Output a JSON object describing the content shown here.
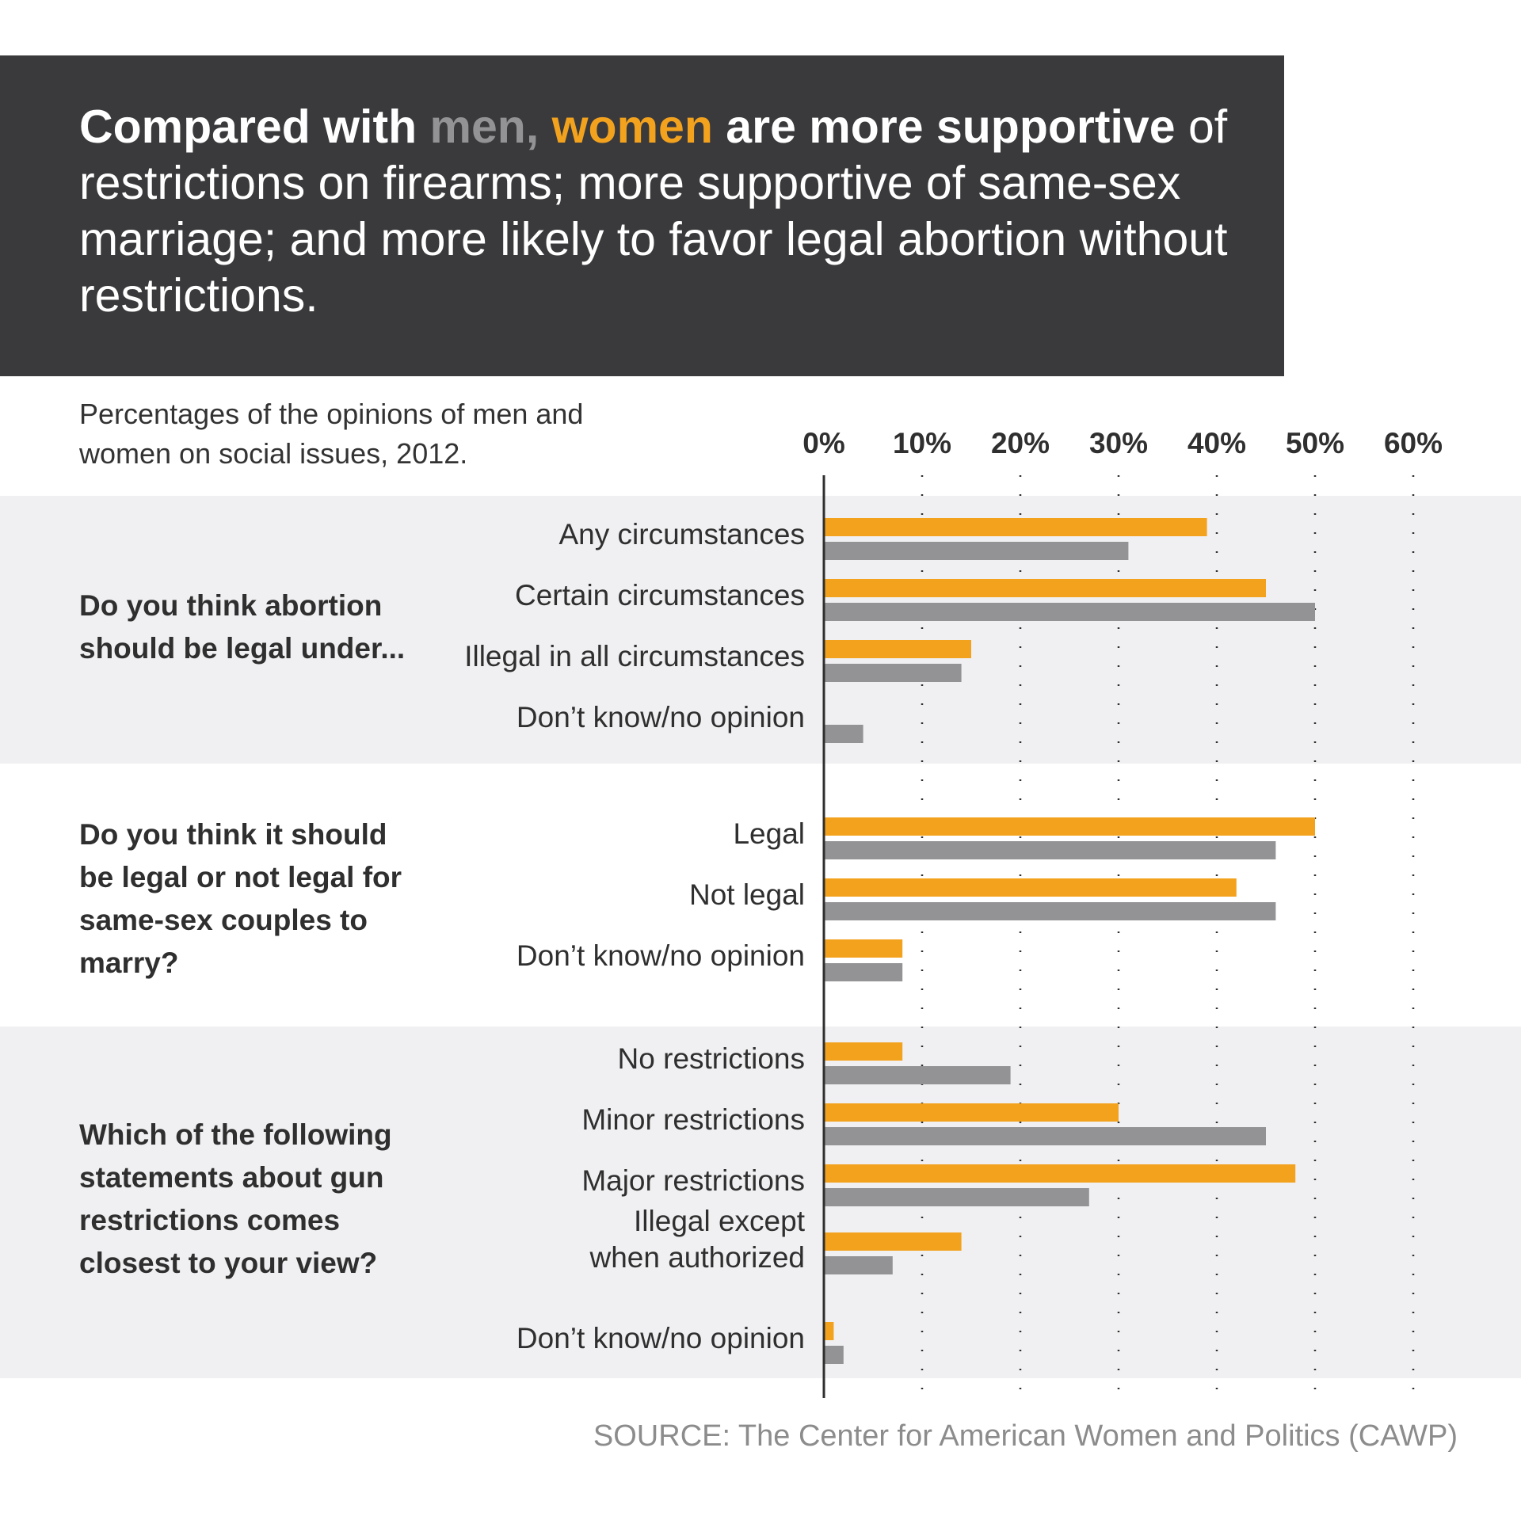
{
  "header": {
    "lead": "Compared with ",
    "men_word": "men,",
    "women_word": "women",
    "bold_rest": " are more supportive",
    "rest": " of restrictions on firearms; more supportive of same-sex marriage; and more likely to favor legal abortion without restrictions."
  },
  "subtitle": "Percentages of the opinions of men and women on social issues, 2012.",
  "source": "SOURCE: The Center for American Women and Politics (CAWP)",
  "colors": {
    "women": "#f3a21e",
    "men": "#939395",
    "band": "#f0f0f2",
    "header_bg": "#3a3a3c"
  },
  "chart_data": {
    "type": "bar",
    "orientation": "horizontal",
    "xlim": [
      0,
      60
    ],
    "ticks": [
      "0%",
      "10%",
      "20%",
      "30%",
      "40%",
      "50%",
      "60%"
    ],
    "grid": true,
    "series": [
      {
        "key": "women",
        "label_word": "women"
      },
      {
        "key": "men",
        "label_word": "men"
      }
    ],
    "groups": [
      {
        "question": "Do you think abortion should be legal under...",
        "shaded": true,
        "items": [
          {
            "label": "Any circumstances",
            "women": 39,
            "men": 31
          },
          {
            "label": "Certain circumstances",
            "women": 45,
            "men": 50
          },
          {
            "label": "Illegal in all circumstances",
            "women": 15,
            "men": 14
          },
          {
            "label": "Don’t know/no opinion",
            "women": 0,
            "men": 4
          }
        ]
      },
      {
        "question": "Do you think it should be legal or not legal for same-sex couples to marry?",
        "shaded": false,
        "items": [
          {
            "label": "Legal",
            "women": 50,
            "men": 46
          },
          {
            "label": "Not legal",
            "women": 42,
            "men": 46
          },
          {
            "label": "Don’t know/no opinion",
            "women": 8,
            "men": 8
          }
        ]
      },
      {
        "question": "Which of the following statements about gun restrictions comes closest to your view?",
        "shaded": true,
        "items": [
          {
            "label": "No restrictions",
            "women": 8,
            "men": 19
          },
          {
            "label": "Minor restrictions",
            "women": 30,
            "men": 45
          },
          {
            "label": "Major restrictions",
            "women": 48,
            "men": 27
          },
          {
            "label": "Illegal except",
            "label2": "when authorized",
            "women": 14,
            "men": 7
          },
          {
            "label": "Don’t know/no opinion",
            "women": 1,
            "men": 2
          }
        ]
      }
    ]
  }
}
